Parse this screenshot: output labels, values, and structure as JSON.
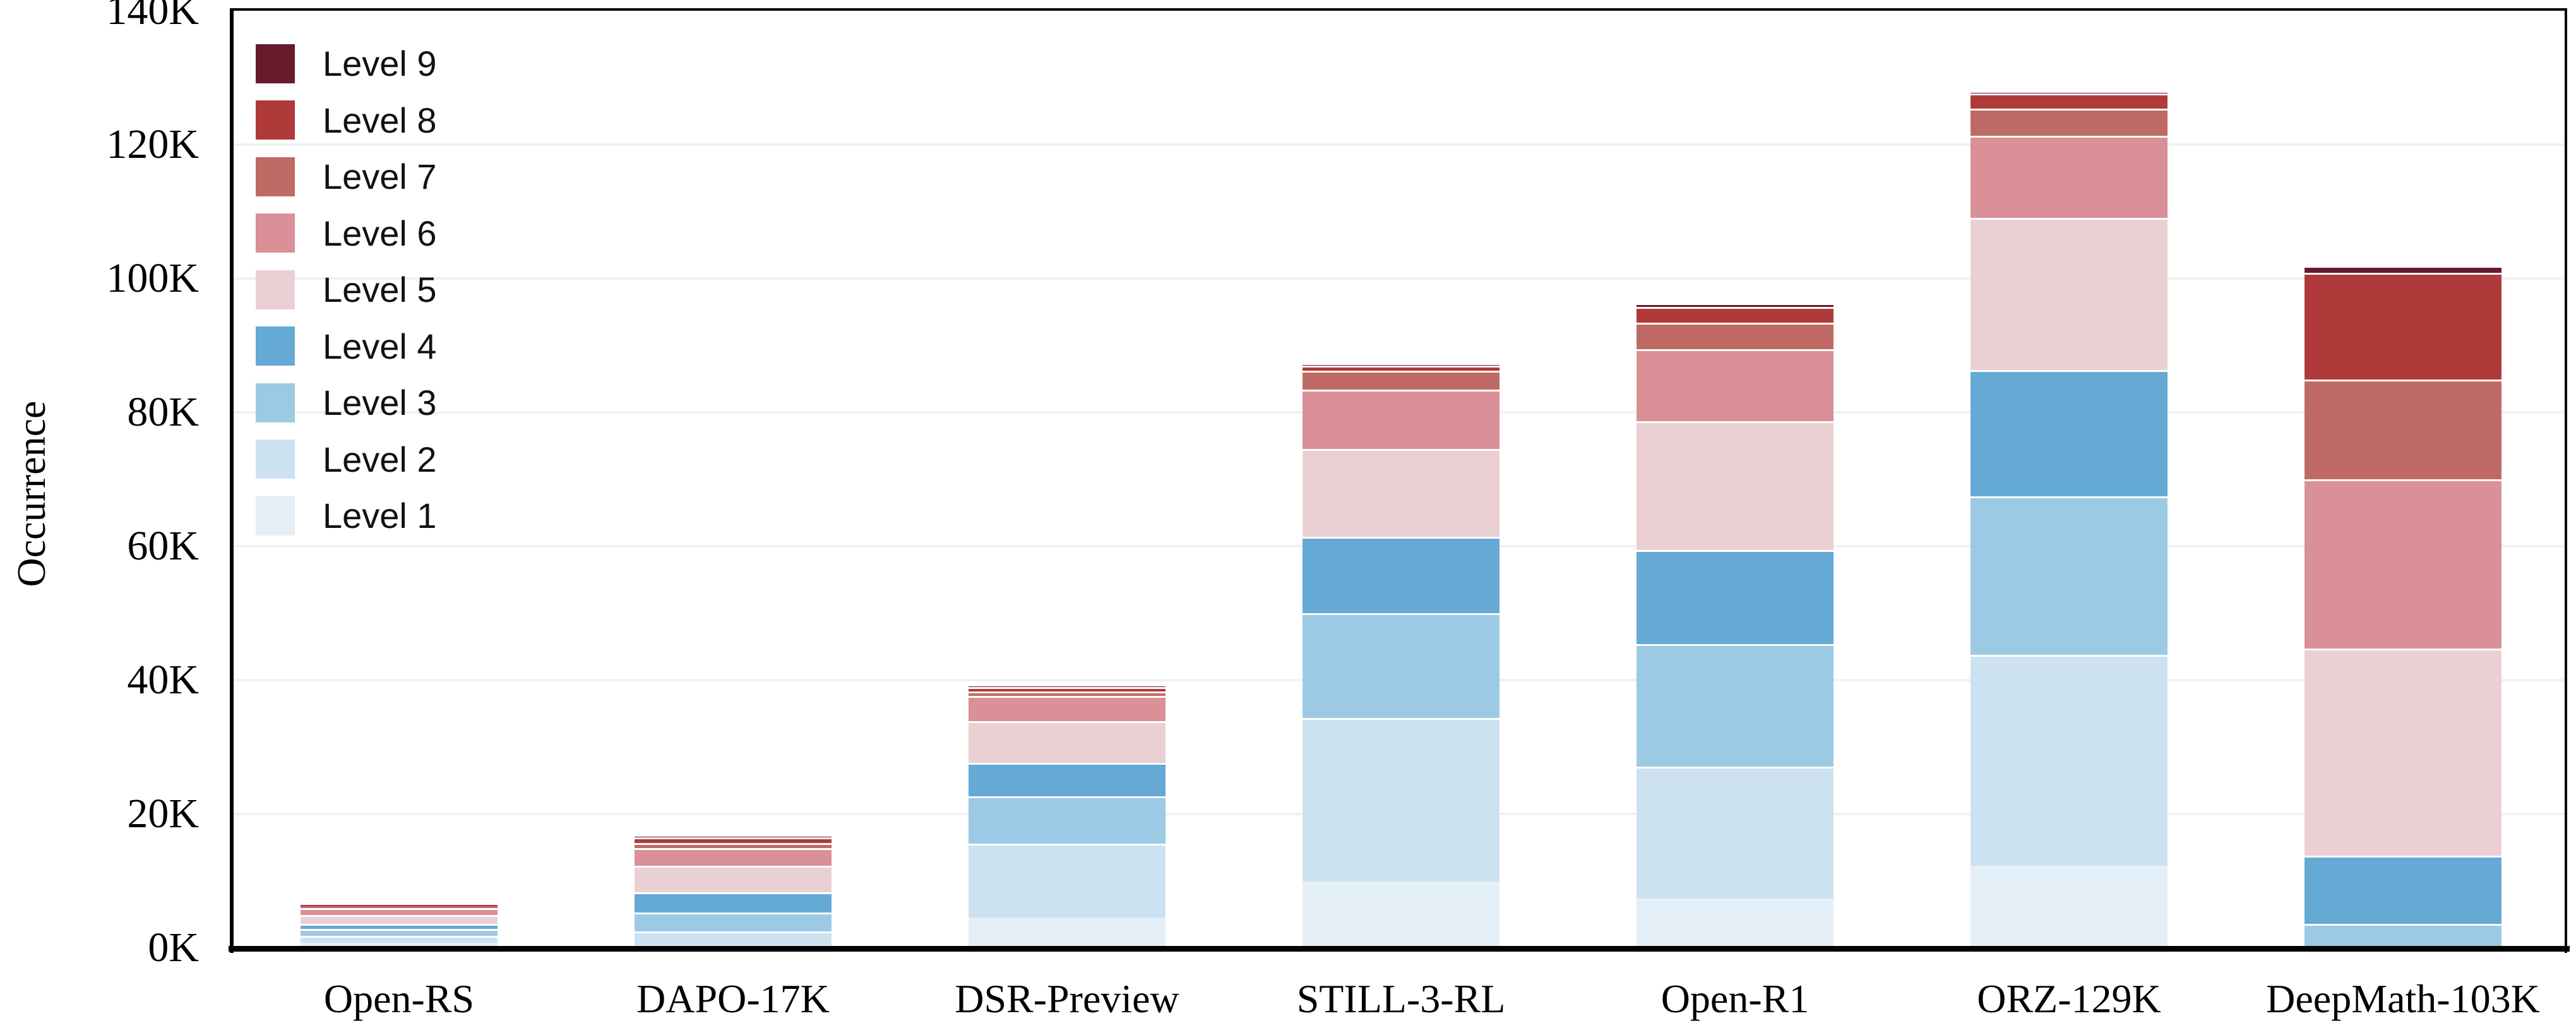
{
  "chart_data": {
    "type": "bar",
    "stacked": true,
    "title": "",
    "xlabel": "",
    "ylabel": "Occurrence",
    "unit": "thousands (K)",
    "ylim": [
      0,
      140
    ],
    "ytick_step": 20,
    "ytick_labels": [
      "0K",
      "20K",
      "40K",
      "60K",
      "80K",
      "100K",
      "120K",
      "140K"
    ],
    "grid": "horizontal faint gridlines at 20K intervals",
    "legend_position": "upper-left, ordered Level 9 (top) to Level 1 (bottom)",
    "categories": [
      "Open-RS",
      "DAPO-17K",
      "DSR-Preview",
      "STILL-3-RL",
      "Open-R1",
      "ORZ-129K",
      "DeepMath-103K"
    ],
    "series": [
      {
        "name": "Level 1",
        "color": "#e4eff8",
        "values": [
          0.8,
          0.4,
          4.5,
          9.9,
          7.4,
          12.3,
          0.05
        ]
      },
      {
        "name": "Level 2",
        "color": "#cde2f0",
        "values": [
          1.0,
          2.1,
          11.1,
          24.4,
          19.7,
          31.5,
          0.1
        ]
      },
      {
        "name": "Level 3",
        "color": "#9ccae5",
        "values": [
          1.0,
          2.75,
          7.0,
          15.7,
          18.3,
          23.7,
          3.45
        ]
      },
      {
        "name": "Level 4",
        "color": "#64aad5",
        "values": [
          0.75,
          3.05,
          5.0,
          11.4,
          14.0,
          18.8,
          10.2
        ]
      },
      {
        "name": "Level 5",
        "color": "#ebd0d3",
        "values": [
          1.4,
          4.0,
          6.3,
          13.1,
          19.3,
          22.8,
          30.9
        ]
      },
      {
        "name": "Level 6",
        "color": "#d99096",
        "values": [
          1.0,
          2.65,
          3.7,
          8.9,
          10.7,
          12.2,
          25.3
        ]
      },
      {
        "name": "Level 7",
        "color": "#c06a66",
        "values": [
          0.3,
          0.75,
          0.7,
          2.8,
          4.0,
          4.1,
          14.9
        ]
      },
      {
        "name": "Level 8",
        "color": "#b03a3a",
        "values": [
          0.45,
          0.85,
          0.65,
          0.75,
          2.4,
          2.2,
          16.0
        ]
      },
      {
        "name": "Level 9",
        "color": "#671c2d",
        "values": [
          0.05,
          0.05,
          0.15,
          0.1,
          0.2,
          0.1,
          0.95
        ]
      }
    ],
    "approx_totals": [
      6.8,
      16.6,
      39.2,
      87.1,
      96.0,
      127.7,
      101.9
    ]
  }
}
